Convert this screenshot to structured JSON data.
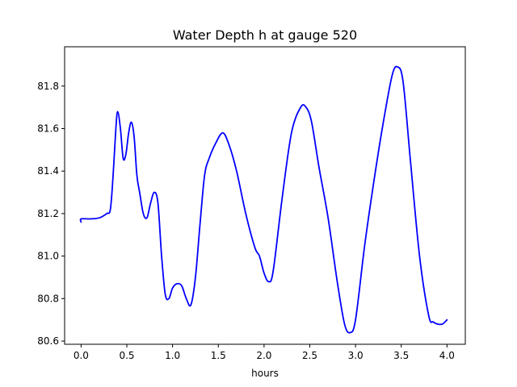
{
  "chart_data": {
    "type": "line",
    "title": "Water Depth h at gauge 520",
    "xlabel": "hours",
    "ylabel": "",
    "xlim": [
      -0.18,
      4.2
    ],
    "ylim": [
      80.585,
      81.985
    ],
    "xticks": [
      0.0,
      0.5,
      1.0,
      1.5,
      2.0,
      2.5,
      3.0,
      3.5,
      4.0
    ],
    "xtick_labels": [
      "0.0",
      "0.5",
      "1.0",
      "1.5",
      "2.0",
      "2.5",
      "3.0",
      "3.5",
      "4.0"
    ],
    "yticks": [
      80.6,
      80.8,
      81.0,
      81.2,
      81.4,
      81.6,
      81.8
    ],
    "ytick_labels": [
      "80.6",
      "80.8",
      "81.0",
      "81.2",
      "81.4",
      "81.6",
      "81.8"
    ],
    "grid": false,
    "series": [
      {
        "color": "#0000ff",
        "x": [
          0.0,
          0.0,
          0.1,
          0.2,
          0.28,
          0.32,
          0.35,
          0.38,
          0.4,
          0.43,
          0.46,
          0.49,
          0.52,
          0.55,
          0.58,
          0.61,
          0.64,
          0.68,
          0.72,
          0.76,
          0.8,
          0.84,
          0.88,
          0.92,
          0.96,
          1.0,
          1.05,
          1.1,
          1.15,
          1.2,
          1.25,
          1.3,
          1.35,
          1.4,
          1.47,
          1.55,
          1.62,
          1.7,
          1.8,
          1.9,
          1.95,
          2.0,
          2.05,
          2.1,
          2.2,
          2.3,
          2.4,
          2.46,
          2.52,
          2.6,
          2.7,
          2.8,
          2.88,
          2.94,
          3.0,
          3.1,
          3.2,
          3.3,
          3.4,
          3.46,
          3.52,
          3.6,
          3.7,
          3.8,
          3.85,
          3.9,
          3.95,
          4.0
        ],
        "y": [
          81.16,
          81.175,
          81.175,
          81.18,
          81.2,
          81.22,
          81.38,
          81.6,
          81.68,
          81.6,
          81.46,
          81.48,
          81.58,
          81.63,
          81.56,
          81.38,
          81.3,
          81.2,
          81.18,
          81.25,
          81.3,
          81.25,
          81.0,
          80.82,
          80.8,
          80.85,
          80.87,
          80.86,
          80.8,
          80.77,
          80.9,
          81.15,
          81.38,
          81.46,
          81.53,
          81.58,
          81.52,
          81.4,
          81.2,
          81.04,
          81.0,
          80.92,
          80.88,
          80.93,
          81.28,
          81.58,
          81.7,
          81.7,
          81.63,
          81.42,
          81.18,
          80.88,
          80.68,
          80.64,
          80.7,
          81.05,
          81.35,
          81.62,
          81.85,
          81.89,
          81.82,
          81.45,
          81.0,
          80.72,
          80.69,
          80.68,
          80.68,
          80.7
        ]
      }
    ]
  }
}
